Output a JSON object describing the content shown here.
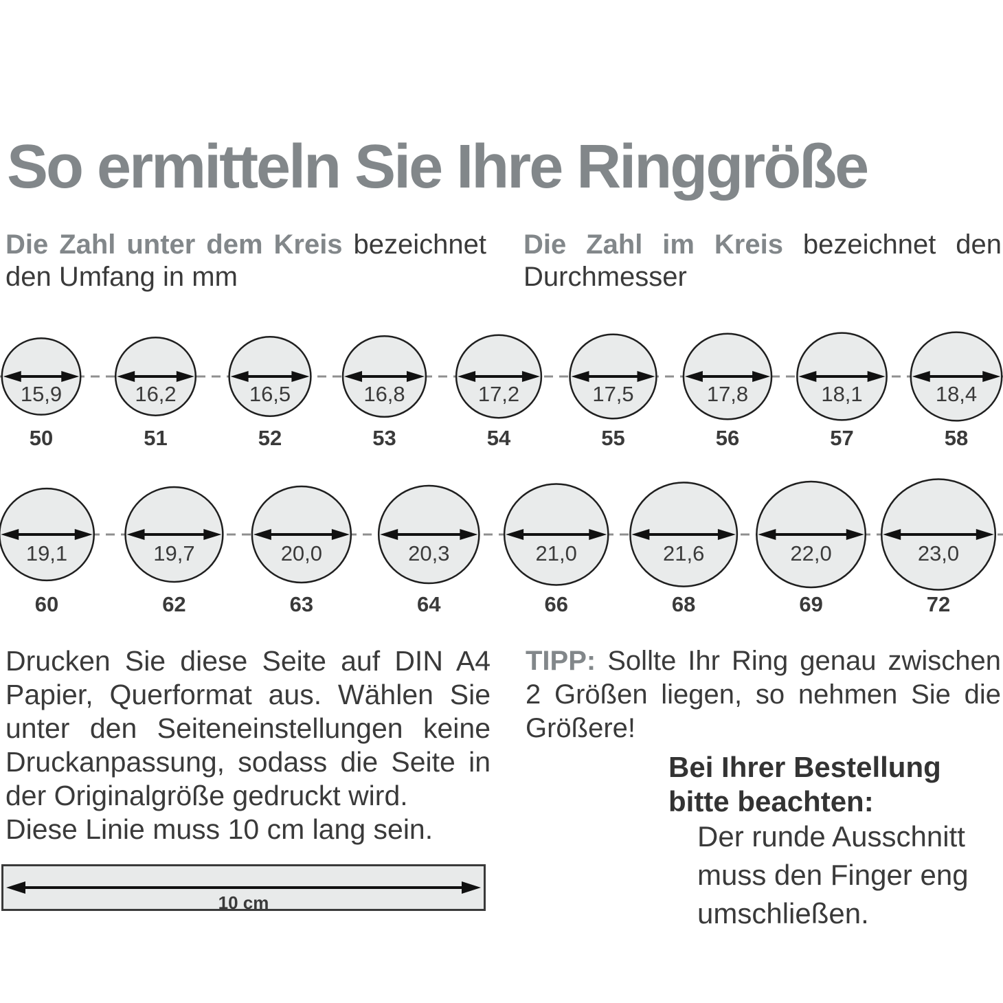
{
  "title": "So ermitteln Sie Ihre Ringgröße",
  "intro": {
    "left": {
      "bold": "Die Zahl unter dem Kreis",
      "line1_rest": "bezeichnet",
      "line2": "den Umfang in mm"
    },
    "right": {
      "bold": "Die Zahl im Kreis",
      "line1_rest": "bezeichnet den",
      "line2": "Durchmesser"
    }
  },
  "chart_data": {
    "type": "diagram",
    "description": "Ring size measuring chart: the number under each circle is the ring size (circumference in mm), the number inside each circle is the inner diameter in mm",
    "rows": [
      {
        "circles": [
          {
            "diameter_mm": "15,9",
            "size": "50"
          },
          {
            "diameter_mm": "16,2",
            "size": "51"
          },
          {
            "diameter_mm": "16,5",
            "size": "52"
          },
          {
            "diameter_mm": "16,8",
            "size": "53"
          },
          {
            "diameter_mm": "17,2",
            "size": "54"
          },
          {
            "diameter_mm": "17,5",
            "size": "55"
          },
          {
            "diameter_mm": "17,8",
            "size": "56"
          },
          {
            "diameter_mm": "18,1",
            "size": "57"
          },
          {
            "diameter_mm": "18,4",
            "size": "58"
          }
        ]
      },
      {
        "circles": [
          {
            "diameter_mm": "19,1",
            "size": "60"
          },
          {
            "diameter_mm": "19,7",
            "size": "62"
          },
          {
            "diameter_mm": "20,0",
            "size": "63"
          },
          {
            "diameter_mm": "20,3",
            "size": "64"
          },
          {
            "diameter_mm": "21,0",
            "size": "66"
          },
          {
            "diameter_mm": "21,6",
            "size": "68"
          },
          {
            "diameter_mm": "22,0",
            "size": "69"
          },
          {
            "diameter_mm": "23,0",
            "size": "72"
          }
        ]
      }
    ]
  },
  "print_instructions": {
    "lines": [
      "Drucken Sie diese Seite auf DIN A4",
      "Papier, Querformat aus. Wählen Sie",
      "unter den Seiteneinstellungen keine",
      "Druckanpassung, sodass die Seite in",
      "der Originalgröße gedruckt wird.",
      "Diese Linie muss 10 cm lang sein."
    ]
  },
  "tip": {
    "label": "TIPP:",
    "line1_rest": "Sollte Ihr Ring genau zwischen",
    "line2": "2 Größen liegen, so nehmen Sie die",
    "line3": "Größere!"
  },
  "order_note": {
    "heading_line1": "Bei Ihrer Bestellung",
    "heading_line2": "bitte beachten:",
    "body_line1": "Der runde Ausschnitt",
    "body_line2": "muss den Finger eng",
    "body_line3": "umschließen."
  },
  "ruler": {
    "label": "10 cm"
  },
  "colors": {
    "accent_gray": "#82878a",
    "text": "#3a3a3a",
    "circle_fill": "#e9ebeb",
    "circle_stroke": "#1f1f1f",
    "dashed_line": "#8f8f8f",
    "arrow": "#111111"
  }
}
